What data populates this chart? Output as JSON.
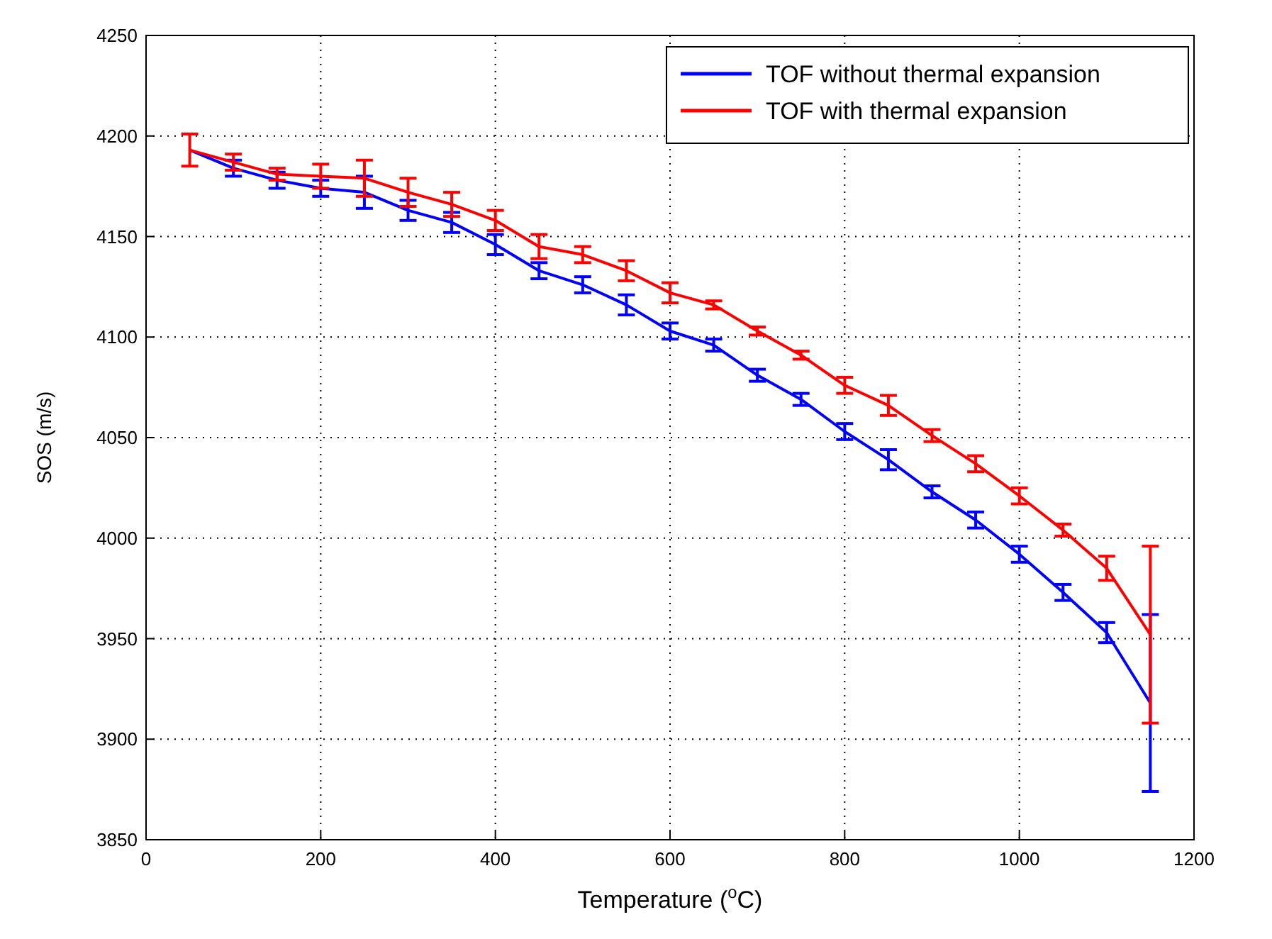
{
  "chart_data": {
    "type": "line",
    "xlabel": "Temperature ($^{o}$C)",
    "ylabel": "SOS (m/s)",
    "x": [
      50,
      100,
      150,
      200,
      250,
      300,
      350,
      400,
      450,
      500,
      550,
      600,
      650,
      700,
      750,
      800,
      850,
      900,
      950,
      1000,
      1050,
      1100,
      1150
    ],
    "xlim": [
      0,
      1200
    ],
    "xticks": [
      0,
      200,
      400,
      600,
      800,
      1000,
      1200
    ],
    "ylim": [
      3850,
      4250
    ],
    "yticks": [
      3850,
      3900,
      3950,
      4000,
      4050,
      4100,
      4150,
      4200,
      4250
    ],
    "grid": true,
    "legend": "top right",
    "marker": "none",
    "line_style": "solid",
    "series": [
      {
        "name": "TOF without thermal expansion",
        "color": "#0000ff",
        "values": [
          4193,
          4184,
          4178,
          4174,
          4172,
          4163,
          4157,
          4146,
          4133,
          4126,
          4116,
          4103,
          4096,
          4081,
          4069,
          4053,
          4039,
          4023,
          4009,
          3992,
          3973,
          3953,
          3918
        ],
        "errors": [
          null,
          4,
          4,
          4,
          8,
          5,
          5,
          5,
          4,
          4,
          5,
          4,
          3,
          3,
          3,
          4,
          5,
          3,
          4,
          4,
          4,
          5,
          44
        ]
      },
      {
        "name": "TOF with thermal expansion",
        "color": "#ff0000",
        "values": [
          4193,
          4187,
          4181,
          4180,
          4179,
          4172,
          4166,
          4158,
          4145,
          4141,
          4133,
          4122,
          4116,
          4103,
          4091,
          4076,
          4066,
          4051,
          4037,
          4021,
          4004,
          3985,
          3952
        ],
        "errors": [
          8,
          4,
          3,
          6,
          9,
          7,
          6,
          5,
          6,
          4,
          5,
          5,
          2,
          2,
          2,
          4,
          5,
          3,
          4,
          4,
          3,
          6,
          44
        ]
      }
    ]
  }
}
